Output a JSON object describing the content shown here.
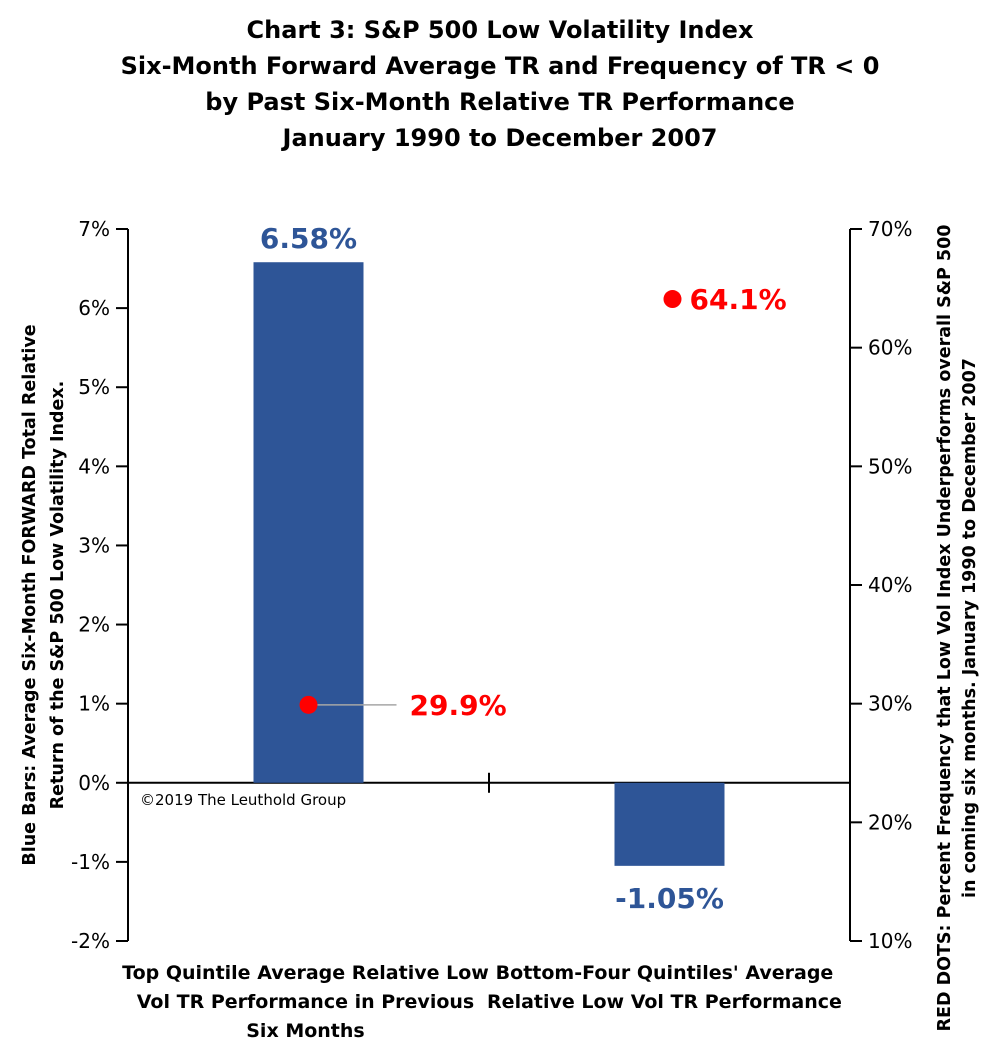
{
  "chart_data": {
    "type": "bar",
    "title_lines": [
      "Chart 3: S&P 500 Low Volatility Index",
      "Six-Month Forward Average TR and Frequency of TR < 0",
      "by Past Six-Month Relative TR Performance",
      "January 1990 to December 2007"
    ],
    "categories": [
      [
        "Top Quintile Average Relative Low",
        "Vol TR Performance in Previous",
        "Six Months"
      ],
      [
        "Bottom-Four Quintiles' Average",
        "Relative Low Vol TR Performance"
      ]
    ],
    "bars": {
      "values": [
        6.58,
        -1.05
      ],
      "labels": [
        "6.58%",
        "-1.05%"
      ],
      "color": "#2e5597"
    },
    "dots": {
      "values": [
        29.9,
        64.1
      ],
      "labels": [
        "29.9%",
        "64.1%"
      ],
      "color": "#ff0000"
    },
    "y_left": {
      "range": [
        -2,
        7
      ],
      "ticks": [
        "-2%",
        "-1%",
        "0%",
        "1%",
        "2%",
        "3%",
        "4%",
        "5%",
        "6%",
        "7%"
      ],
      "title_lines": [
        "Blue Bars: Average  Six-Month FORWARD Total Relative",
        "Return of the S&P 500 Low Volatility Index."
      ]
    },
    "y_right": {
      "range": [
        10,
        70
      ],
      "ticks": [
        "10%",
        "20%",
        "30%",
        "40%",
        "50%",
        "60%",
        "70%"
      ],
      "title_lines": [
        "RED DOTS: Percent Frequency that Low Vol Index Underperforms overall S&P 500",
        "in coming six months. January 1990 to December 2007"
      ]
    },
    "grid": false,
    "legend": "none"
  },
  "copyright": "©2019 The Leuthold Group"
}
